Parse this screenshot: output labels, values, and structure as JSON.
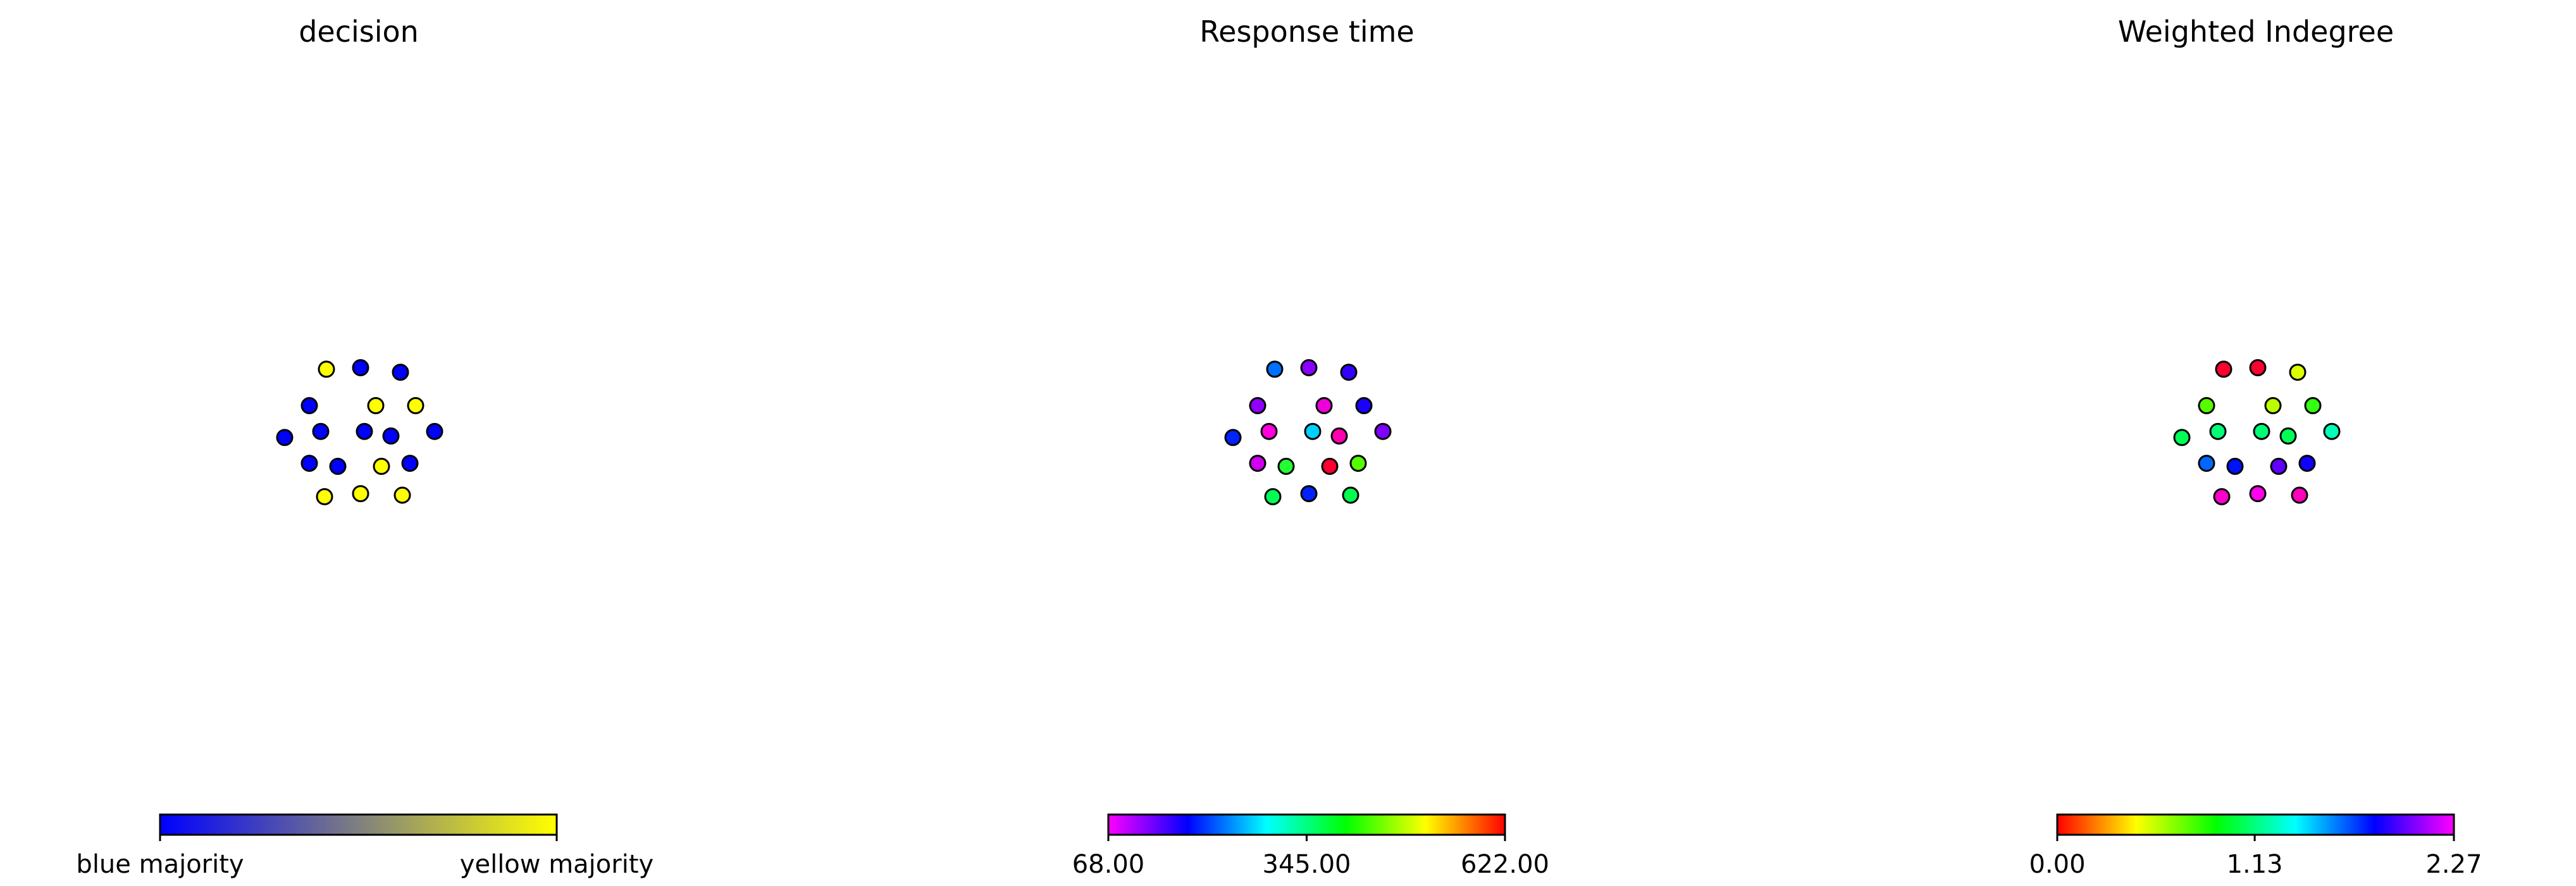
{
  "chart_data": [
    {
      "type": "scatter",
      "title": "decision",
      "xlabel": "",
      "ylabel": "",
      "grid": false,
      "axes_visible": false,
      "colorbar": {
        "orientation": "horizontal",
        "colors": [
          "#0000ff",
          "#ffff00"
        ],
        "ticks": [
          0,
          1
        ],
        "tick_labels": [
          "blue majority",
          "yellow majority"
        ]
      },
      "points": [
        {
          "x": 0.32,
          "y": 0.88,
          "color": "#ffff00"
        },
        {
          "x": 0.5,
          "y": 0.89,
          "color": "#0000ff"
        },
        {
          "x": 0.71,
          "y": 0.86,
          "color": "#0000ff"
        },
        {
          "x": 0.23,
          "y": 0.64,
          "color": "#0000ff"
        },
        {
          "x": 0.58,
          "y": 0.64,
          "color": "#ffff00"
        },
        {
          "x": 0.79,
          "y": 0.64,
          "color": "#ffff00"
        },
        {
          "x": 0.1,
          "y": 0.43,
          "color": "#0000ff"
        },
        {
          "x": 0.29,
          "y": 0.47,
          "color": "#0000ff"
        },
        {
          "x": 0.52,
          "y": 0.47,
          "color": "#0000ff"
        },
        {
          "x": 0.66,
          "y": 0.44,
          "color": "#0000ff"
        },
        {
          "x": 0.89,
          "y": 0.47,
          "color": "#0000ff"
        },
        {
          "x": 0.23,
          "y": 0.26,
          "color": "#0000ff"
        },
        {
          "x": 0.38,
          "y": 0.24,
          "color": "#0000ff"
        },
        {
          "x": 0.61,
          "y": 0.24,
          "color": "#ffff00"
        },
        {
          "x": 0.76,
          "y": 0.26,
          "color": "#0000ff"
        },
        {
          "x": 0.31,
          "y": 0.04,
          "color": "#ffff00"
        },
        {
          "x": 0.5,
          "y": 0.06,
          "color": "#ffff00"
        },
        {
          "x": 0.72,
          "y": 0.05,
          "color": "#ffff00"
        }
      ]
    },
    {
      "type": "scatter",
      "title": "Response time",
      "xlabel": "",
      "ylabel": "",
      "grid": false,
      "axes_visible": false,
      "colorbar": {
        "orientation": "horizontal",
        "colors": [
          "#ff00ff",
          "#0000ff",
          "#00ffff",
          "#00ff00",
          "#ffff00",
          "#ff0000"
        ],
        "ticks": [
          68.0,
          345.0,
          622.0
        ],
        "tick_labels": [
          "68.00",
          "345.00",
          "622.00"
        ]
      },
      "points": [
        {
          "x": 0.32,
          "y": 0.88,
          "value": 265,
          "color": "#0070ff"
        },
        {
          "x": 0.5,
          "y": 0.89,
          "value": 200,
          "color": "#8800ff"
        },
        {
          "x": 0.71,
          "y": 0.86,
          "value": 210,
          "color": "#3300ff"
        },
        {
          "x": 0.23,
          "y": 0.64,
          "value": 185,
          "color": "#9000ff"
        },
        {
          "x": 0.58,
          "y": 0.64,
          "value": 110,
          "color": "#ee00dd"
        },
        {
          "x": 0.79,
          "y": 0.64,
          "value": 215,
          "color": "#1a00ff"
        },
        {
          "x": 0.1,
          "y": 0.43,
          "value": 225,
          "color": "#0022ff"
        },
        {
          "x": 0.29,
          "y": 0.47,
          "value": 95,
          "color": "#ff00dd"
        },
        {
          "x": 0.52,
          "y": 0.47,
          "value": 300,
          "color": "#00d0ff"
        },
        {
          "x": 0.66,
          "y": 0.44,
          "value": 95,
          "color": "#ff00b0"
        },
        {
          "x": 0.89,
          "y": 0.47,
          "value": 195,
          "color": "#8000ff"
        },
        {
          "x": 0.23,
          "y": 0.26,
          "value": 135,
          "color": "#d000ee"
        },
        {
          "x": 0.38,
          "y": 0.24,
          "value": 405,
          "color": "#22ff33"
        },
        {
          "x": 0.61,
          "y": 0.24,
          "value": 620,
          "color": "#ff0030"
        },
        {
          "x": 0.76,
          "y": 0.26,
          "value": 440,
          "color": "#55ff00"
        },
        {
          "x": 0.31,
          "y": 0.04,
          "value": 390,
          "color": "#00ff55"
        },
        {
          "x": 0.5,
          "y": 0.06,
          "value": 235,
          "color": "#0022ff"
        },
        {
          "x": 0.72,
          "y": 0.05,
          "value": 395,
          "color": "#00ff50"
        }
      ]
    },
    {
      "type": "scatter",
      "title": "Weighted Indegree",
      "xlabel": "",
      "ylabel": "",
      "grid": false,
      "axes_visible": false,
      "colorbar": {
        "orientation": "horizontal",
        "colors": [
          "#ff0000",
          "#ffff00",
          "#00ff00",
          "#00ffff",
          "#0000ff",
          "#ff00ff"
        ],
        "ticks": [
          0.0,
          1.13,
          2.27
        ],
        "tick_labels": [
          "0.00",
          "1.13",
          "2.27"
        ]
      },
      "points": [
        {
          "x": 0.32,
          "y": 0.88,
          "value": 0.05,
          "color": "#ff0030"
        },
        {
          "x": 0.5,
          "y": 0.89,
          "value": 0.05,
          "color": "#ff0030"
        },
        {
          "x": 0.71,
          "y": 0.86,
          "value": 0.45,
          "color": "#ddff00"
        },
        {
          "x": 0.23,
          "y": 0.64,
          "value": 0.75,
          "color": "#55ff00"
        },
        {
          "x": 0.58,
          "y": 0.64,
          "value": 0.5,
          "color": "#bbff00"
        },
        {
          "x": 0.79,
          "y": 0.64,
          "value": 0.8,
          "color": "#33ff11"
        },
        {
          "x": 0.1,
          "y": 0.43,
          "value": 0.9,
          "color": "#00ff55"
        },
        {
          "x": 0.29,
          "y": 0.47,
          "value": 1.0,
          "color": "#00ff77"
        },
        {
          "x": 0.52,
          "y": 0.47,
          "value": 1.0,
          "color": "#00ff77"
        },
        {
          "x": 0.66,
          "y": 0.44,
          "value": 0.9,
          "color": "#00ff55"
        },
        {
          "x": 0.89,
          "y": 0.47,
          "value": 1.2,
          "color": "#00ffbb"
        },
        {
          "x": 0.23,
          "y": 0.26,
          "value": 1.6,
          "color": "#0066ff"
        },
        {
          "x": 0.38,
          "y": 0.24,
          "value": 1.85,
          "color": "#0011ff"
        },
        {
          "x": 0.61,
          "y": 0.24,
          "value": 1.95,
          "color": "#6000ff"
        },
        {
          "x": 0.76,
          "y": 0.26,
          "value": 1.85,
          "color": "#1100ff"
        },
        {
          "x": 0.31,
          "y": 0.04,
          "value": 2.27,
          "color": "#ff00cc"
        },
        {
          "x": 0.5,
          "y": 0.06,
          "value": 2.27,
          "color": "#ff00ee"
        },
        {
          "x": 0.72,
          "y": 0.05,
          "value": 2.27,
          "color": "#ff00bb"
        }
      ]
    }
  ]
}
